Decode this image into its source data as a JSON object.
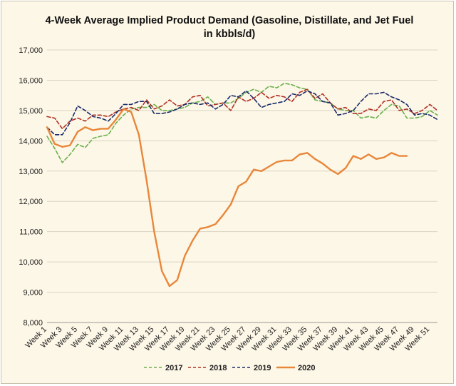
{
  "chart_data": {
    "type": "line",
    "title_line1": "4-Week Average Implied Product Demand (Gasoline, Distillate, and Jet Fuel",
    "title_line2": "in kbbls/d)",
    "xlabel": "",
    "ylabel": "",
    "ylim": [
      8000,
      17000
    ],
    "yticks": [
      8000,
      9000,
      10000,
      11000,
      12000,
      13000,
      14000,
      15000,
      16000,
      17000
    ],
    "ytick_labels": [
      "8,000",
      "9,000",
      "10,000",
      "11,000",
      "12,000",
      "13,000",
      "14,000",
      "15,000",
      "16,000",
      "17,000"
    ],
    "x_tick_labels": [
      "Week 1",
      "Week 3",
      "Week 5",
      "Week 7",
      "Week 9",
      "Week 11",
      "Week 13",
      "Week 15",
      "Week 17",
      "Week 19",
      "Week 21",
      "Week 23",
      "Week 25",
      "Week 27",
      "Week 29",
      "Week 31",
      "Week 33",
      "Week 35",
      "Week 37",
      "Week 39",
      "Week 41",
      "Week 43",
      "Week 45",
      "Week 47",
      "Week 49",
      "Week 51"
    ],
    "num_weeks": 52,
    "grid": "horizontal",
    "legend_position": "bottom",
    "series": [
      {
        "name": "2017",
        "color": "#6ab04c",
        "style": "dashed",
        "width": 1.6,
        "values": [
          14150,
          13750,
          13280,
          13550,
          13880,
          13780,
          14080,
          14150,
          14200,
          14580,
          14850,
          15050,
          15100,
          15100,
          15200,
          15000,
          15000,
          15050,
          15100,
          15250,
          15300,
          15450,
          15200,
          15250,
          15250,
          15400,
          15600,
          15700,
          15600,
          15800,
          15750,
          15900,
          15850,
          15750,
          15700,
          15350,
          15300,
          15250,
          15050,
          15000,
          15000,
          14750,
          14800,
          14750,
          15000,
          15200,
          15150,
          14750,
          14750,
          14800,
          15000,
          14850
        ]
      },
      {
        "name": "2018",
        "color": "#b03024",
        "style": "dashed",
        "width": 1.6,
        "values": [
          14800,
          14750,
          14400,
          14650,
          14750,
          14650,
          14850,
          14850,
          14800,
          14950,
          15050,
          15100,
          15000,
          15350,
          15050,
          15150,
          15350,
          15150,
          15200,
          15450,
          15500,
          15150,
          15200,
          15250,
          15000,
          15450,
          15300,
          15400,
          15600,
          15400,
          15500,
          15450,
          15300,
          15600,
          15700,
          15400,
          15550,
          15250,
          15050,
          15100,
          14900,
          14900,
          15050,
          15000,
          15300,
          15350,
          15000,
          15050,
          14900,
          15000,
          15200,
          15000
        ]
      },
      {
        "name": "2019",
        "color": "#1b2a6b",
        "style": "dashed",
        "width": 1.6,
        "values": [
          14450,
          14200,
          14200,
          14600,
          15150,
          15000,
          14800,
          14750,
          14650,
          14900,
          15200,
          15200,
          15300,
          15300,
          14900,
          14900,
          14950,
          15050,
          15200,
          15250,
          15200,
          15250,
          15050,
          15200,
          15500,
          15450,
          15650,
          15400,
          15100,
          15200,
          15250,
          15300,
          15550,
          15500,
          15650,
          15550,
          15300,
          15250,
          14850,
          14900,
          15000,
          15300,
          15550,
          15550,
          15600,
          15450,
          15350,
          15200,
          14850,
          14900,
          14850,
          14700
        ]
      },
      {
        "name": "2020",
        "color": "#e8873a",
        "style": "solid",
        "width": 2.4,
        "values": [
          14450,
          13900,
          13800,
          13850,
          14300,
          14450,
          14350,
          14400,
          14400,
          14700,
          15050,
          14950,
          14200,
          12700,
          11000,
          9700,
          9200,
          9400,
          10200,
          10700,
          11100,
          11150,
          11250,
          11550,
          11900,
          12500,
          12650,
          13050,
          13000,
          13150,
          13300,
          13350,
          13350,
          13550,
          13600,
          13400,
          13250,
          13050,
          12900,
          13100,
          13500,
          13400,
          13550,
          13400,
          13450,
          13600,
          13500,
          13500
        ]
      }
    ]
  }
}
